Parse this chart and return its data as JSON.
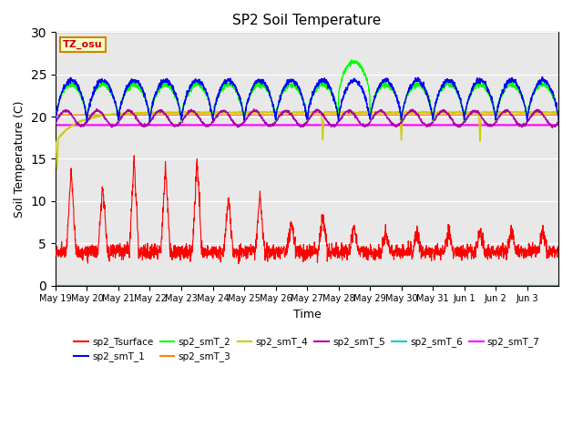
{
  "title": "SP2 Soil Temperature",
  "ylabel": "Soil Temperature (C)",
  "xlabel": "Time",
  "ylim": [
    0,
    30
  ],
  "yticks": [
    0,
    5,
    10,
    15,
    20,
    25,
    30
  ],
  "bg_color": "#e8e8e8",
  "annotation_text": "TZ_osu",
  "annotation_color": "#cc0000",
  "annotation_bg": "#ffffcc",
  "annotation_border": "#cc8800",
  "series_colors": {
    "sp2_Tsurface": "#ff0000",
    "sp2_smT_1": "#0000ff",
    "sp2_smT_2": "#00ff00",
    "sp2_smT_3": "#ff8800",
    "sp2_smT_4": "#cccc00",
    "sp2_smT_5": "#aa00aa",
    "sp2_smT_6": "#00cccc",
    "sp2_smT_7": "#ff00ff"
  },
  "x_tick_labels": [
    "May 19",
    "May 20",
    "May 21",
    "May 22",
    "May 23",
    "May 24",
    "May 25",
    "May 26",
    "May 27",
    "May 28",
    "May 29",
    "May 30",
    "May 31",
    "Jun 1",
    "Jun 2",
    "Jun 3"
  ],
  "n_days": 16,
  "pts_per_day": 144,
  "figsize": [
    6.4,
    4.8
  ],
  "dpi": 100
}
